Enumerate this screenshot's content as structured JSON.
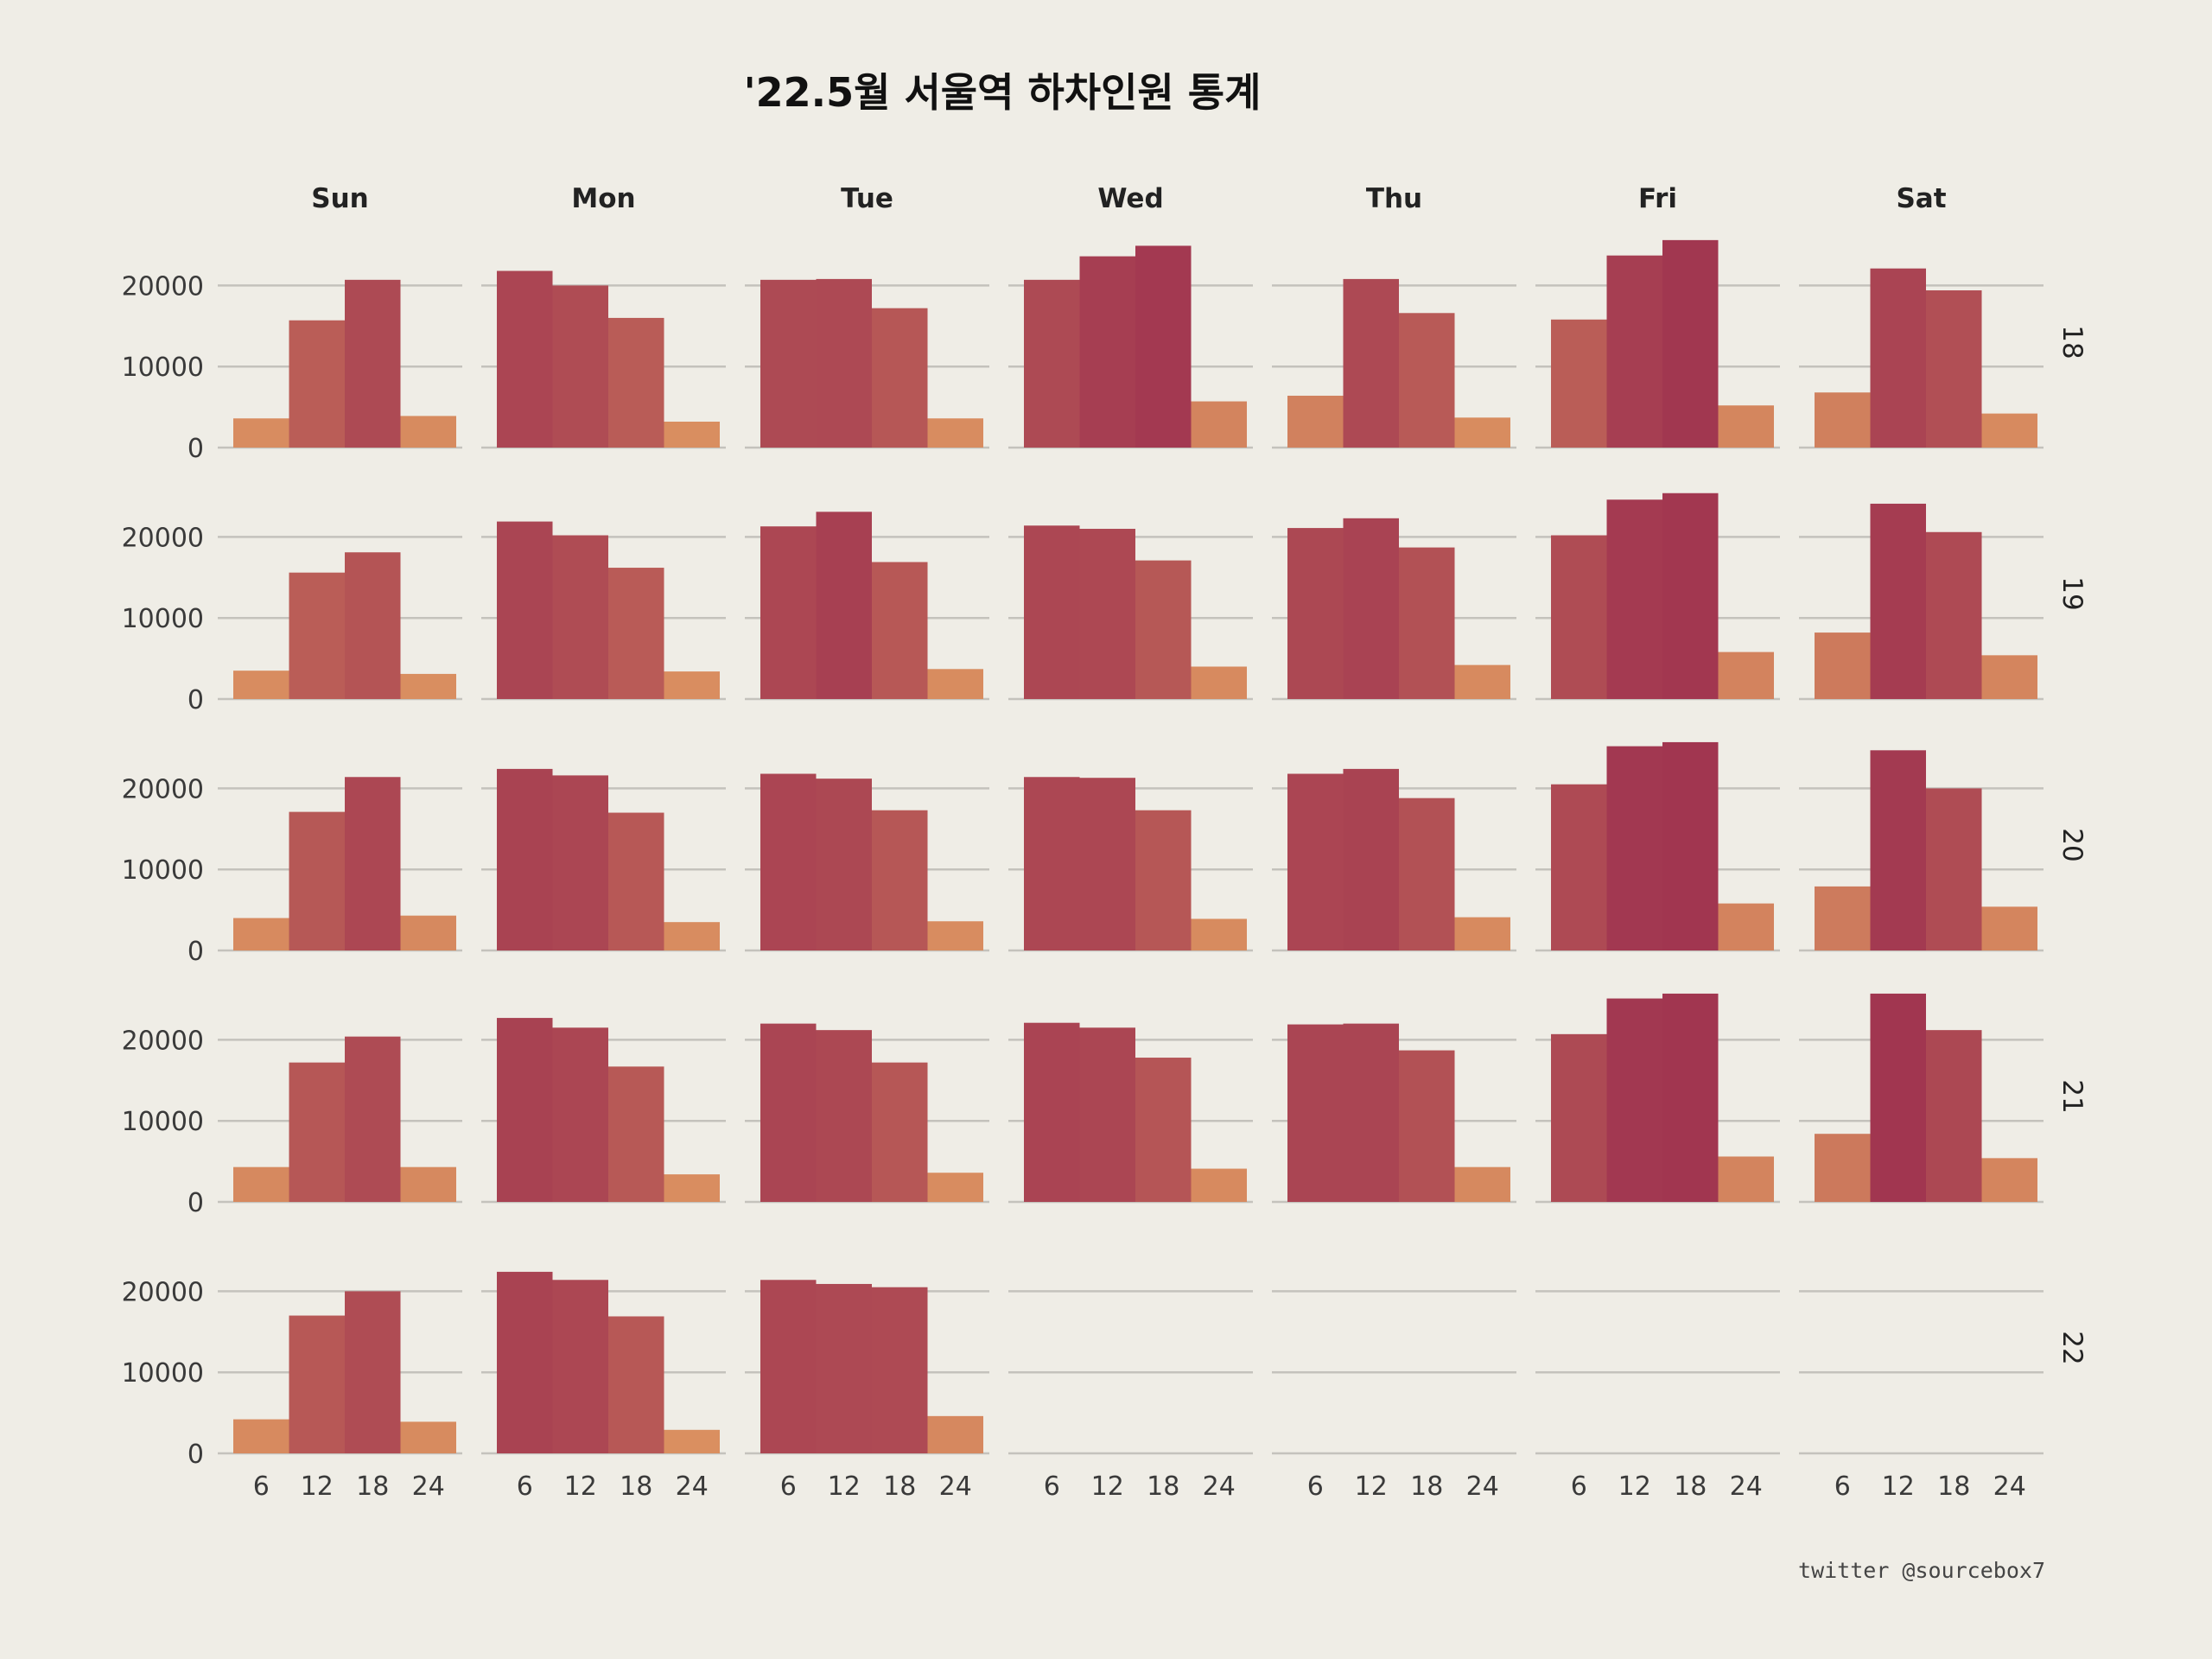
{
  "chart_data": {
    "type": "bar",
    "title": "'22.5월 서울역 하차인원 통계",
    "credit": "twitter @sourcebox7",
    "columns": [
      "Sun",
      "Mon",
      "Tue",
      "Wed",
      "Thu",
      "Fri",
      "Sat"
    ],
    "rows": [
      "18",
      "19",
      "20",
      "21",
      "22"
    ],
    "x": [
      6,
      12,
      18,
      24
    ],
    "xticks": [
      "6",
      "12",
      "18",
      "24"
    ],
    "ylim": [
      0,
      26000
    ],
    "yticks": [
      "0",
      "10000",
      "20000"
    ],
    "color_scale": {
      "low": "#e19a62",
      "high": "#a03550"
    },
    "grid": true,
    "legend": "none",
    "panels": [
      [
        [
          3600,
          15700,
          20700,
          3900
        ],
        [
          21800,
          20000,
          16000,
          3200
        ],
        [
          20700,
          20800,
          17200,
          3600
        ],
        [
          20700,
          23600,
          24900,
          5700
        ],
        [
          6400,
          20800,
          16600,
          3700
        ],
        [
          15800,
          23700,
          25600,
          5200
        ],
        [
          6800,
          22100,
          19400,
          4200
        ]
      ],
      [
        [
          3500,
          15600,
          18100,
          3100
        ],
        [
          21900,
          20200,
          16200,
          3400
        ],
        [
          21300,
          23100,
          16900,
          3700
        ],
        [
          21400,
          21000,
          17100,
          4000
        ],
        [
          21100,
          22300,
          18700,
          4200
        ],
        [
          20200,
          24600,
          25400,
          5800
        ],
        [
          8200,
          24100,
          20600,
          5400
        ]
      ],
      [
        [
          4000,
          17100,
          21400,
          4300
        ],
        [
          22400,
          21600,
          17000,
          3500
        ],
        [
          21800,
          21200,
          17300,
          3600
        ],
        [
          21400,
          21300,
          17300,
          3900
        ],
        [
          21800,
          22400,
          18800,
          4100
        ],
        [
          20500,
          25200,
          25700,
          5800
        ],
        [
          7900,
          24700,
          20000,
          5400
        ]
      ],
      [
        [
          4300,
          17200,
          20400,
          4300
        ],
        [
          22700,
          21500,
          16700,
          3400
        ],
        [
          22000,
          21200,
          17200,
          3600
        ],
        [
          22100,
          21500,
          17800,
          4100
        ],
        [
          21900,
          22000,
          18700,
          4300
        ],
        [
          20700,
          25100,
          25700,
          5600
        ],
        [
          8400,
          25700,
          21200,
          5400
        ]
      ],
      [
        [
          4200,
          17000,
          20000,
          3900
        ],
        [
          22400,
          21400,
          16900,
          2900
        ],
        [
          21400,
          20900,
          20500,
          4600
        ],
        [],
        [],
        [],
        []
      ]
    ]
  }
}
